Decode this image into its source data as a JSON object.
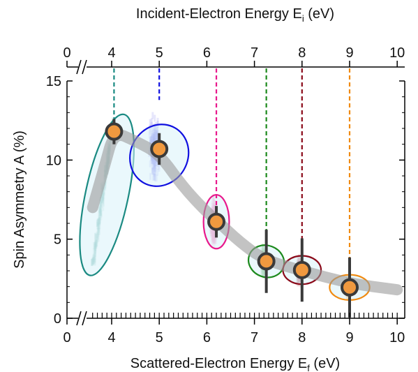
{
  "chart_data": {
    "type": "scatter",
    "xlabel_bottom": "Scattered-Electron Energy E",
    "xlabel_bottom_sub": "f",
    "xlabel_bottom_unit": " (eV)",
    "xlabel_top": "Incident-Electron Energy E",
    "xlabel_top_sub": "i",
    "xlabel_top_unit": " (eV)",
    "ylabel": "Spin Asymmetry A (%)",
    "xlim": [
      0,
      10
    ],
    "ylim": [
      0,
      15
    ],
    "x_axis_break": true,
    "x_ticks_bottom": [
      "0",
      "4",
      "5",
      "6",
      "7",
      "8",
      "9",
      "10"
    ],
    "x_ticks_top": [
      "0",
      "4",
      "5",
      "6",
      "7",
      "8",
      "9",
      "10"
    ],
    "y_ticks": [
      "0",
      "5",
      "10",
      "15"
    ],
    "grid": false,
    "trend_curve": [
      [
        3.6,
        7.0
      ],
      [
        3.85,
        9.6
      ],
      [
        4.05,
        11.8
      ],
      [
        4.5,
        11.2
      ],
      [
        5.0,
        10.4
      ],
      [
        5.5,
        8.3
      ],
      [
        6.0,
        6.7
      ],
      [
        6.2,
        6.2
      ],
      [
        6.7,
        4.8
      ],
      [
        7.2,
        3.7
      ],
      [
        8.0,
        3.0
      ],
      [
        9.0,
        2.2
      ],
      [
        10.0,
        1.8
      ]
    ],
    "series": [
      {
        "incident_energy": 4.05,
        "x": 4.05,
        "y": 11.8,
        "y_err": 0.8,
        "color": "#1a8a82",
        "cloud_x": [
          3.5,
          4.1
        ],
        "cloud_y": [
          3.5,
          12.5
        ]
      },
      {
        "incident_energy": 5.0,
        "x": 5.0,
        "y": 10.7,
        "y_err": 1.0,
        "color": "#1010e0",
        "cloud_x": [
          4.55,
          5.25
        ],
        "cloud_y": [
          3.0,
          14.5
        ]
      },
      {
        "incident_energy": 6.2,
        "x": 6.2,
        "y": 6.1,
        "y_err": 1.0,
        "color": "#e8198c",
        "cloud_x": [
          5.95,
          6.35
        ],
        "cloud_y": [
          0.5,
          9.5
        ]
      },
      {
        "incident_energy": 7.25,
        "x": 7.25,
        "y": 3.6,
        "y_err": 2.0,
        "color": "#1d8a1d",
        "cloud_x": [
          7.05,
          7.35
        ],
        "cloud_y": [
          0.5,
          6.0
        ]
      },
      {
        "incident_energy": 8.0,
        "x": 8.0,
        "y": 3.05,
        "y_err": 2.0,
        "color": "#8b0a1a",
        "cloud_x": [
          7.8,
          8.1
        ],
        "cloud_y": [
          0.2,
          5.0
        ]
      },
      {
        "incident_energy": 9.0,
        "x": 9.0,
        "y": 1.95,
        "y_err": 1.9,
        "color": "#f08a10",
        "cloud_x": [
          8.85,
          9.1
        ],
        "cloud_y": [
          0.0,
          4.2
        ]
      }
    ]
  }
}
